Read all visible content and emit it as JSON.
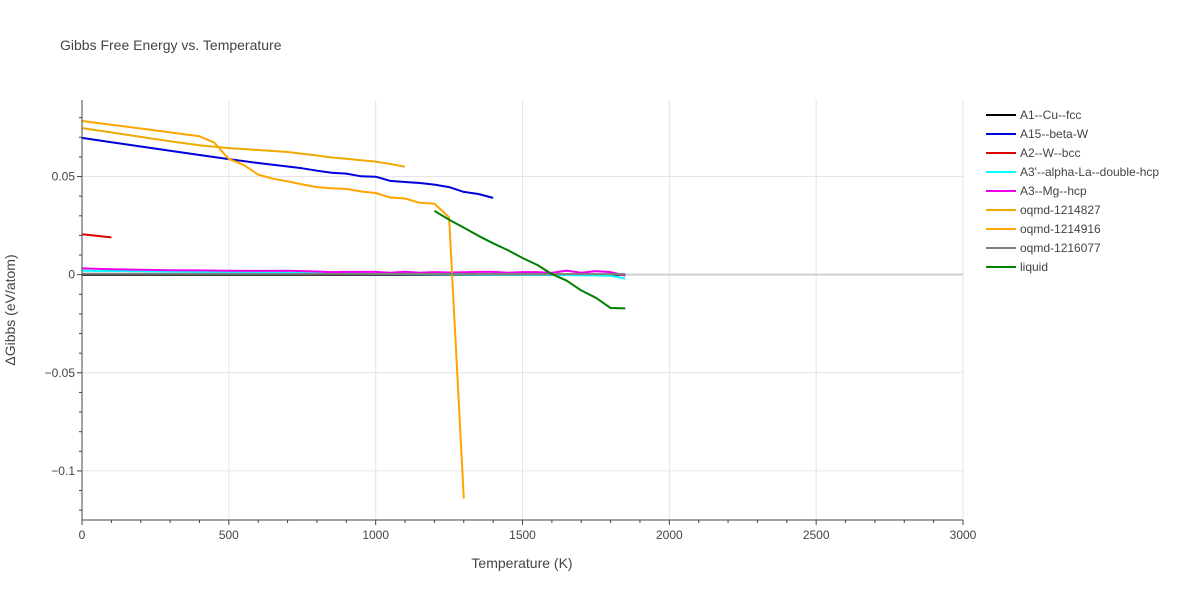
{
  "chart_data": {
    "type": "line",
    "title": "Gibbs Free Energy vs. Temperature",
    "xlabel": "Temperature (K)",
    "ylabel": "ΔGibbs (eV/atom)",
    "xlim": [
      0,
      3000
    ],
    "ylim": [
      -0.125,
      0.089
    ],
    "x_ticks": [
      0,
      500,
      1000,
      1500,
      2000,
      2500,
      3000
    ],
    "x_tick_labels": [
      "0",
      "500",
      "1000",
      "1500",
      "2000",
      "2500",
      "3000"
    ],
    "y_ticks": [
      -0.1,
      -0.05,
      0,
      0.05
    ],
    "y_tick_labels": [
      "−0.1",
      "−0.05",
      "0",
      "0.05"
    ],
    "grid": true,
    "legend_position": "right",
    "series": [
      {
        "name": "A1--Cu--fcc",
        "color": "#000000",
        "x": [
          0,
          1850
        ],
        "y": [
          0,
          0
        ]
      },
      {
        "name": "A15--beta-W",
        "color": "#0000dd",
        "x": [
          0,
          100,
          200,
          300,
          400,
          500,
          600,
          700,
          750,
          800,
          850,
          900,
          950,
          1000,
          1050,
          1100,
          1150,
          1200,
          1250,
          1300,
          1350,
          1400
        ],
        "y": [
          0.0697,
          0.0675,
          0.0653,
          0.0631,
          0.061,
          0.0589,
          0.0569,
          0.0551,
          0.0542,
          0.053,
          0.0519,
          0.0515,
          0.0501,
          0.0499,
          0.0478,
          0.0472,
          0.0467,
          0.0459,
          0.0446,
          0.0422,
          0.0411,
          0.0391
        ]
      },
      {
        "name": "A2--W--bcc",
        "color": "#dd0000",
        "x": [
          0,
          100
        ],
        "y": [
          0.0206,
          0.019
        ]
      },
      {
        "name": "A3'--alpha-La--double-hcp",
        "color": "#00ffff",
        "x": [
          0,
          200,
          400,
          600,
          800,
          1000,
          1200,
          1400,
          1600,
          1800,
          1850
        ],
        "y": [
          0.002,
          0.0017,
          0.0014,
          0.0012,
          0.0008,
          0.0004,
          0.0002,
          0.0001,
          0.0,
          -0.0005,
          -0.002
        ]
      },
      {
        "name": "A3--Mg--hcp",
        "color": "#ee00ee",
        "x": [
          0,
          100,
          200,
          300,
          400,
          500,
          600,
          700,
          800,
          850,
          900,
          1000,
          1050,
          1100,
          1150,
          1200,
          1250,
          1300,
          1350,
          1400,
          1450,
          1500,
          1550,
          1600,
          1650,
          1700,
          1750,
          1800,
          1850
        ],
        "y": [
          0.0032,
          0.0028,
          0.0025,
          0.0023,
          0.0022,
          0.002,
          0.0019,
          0.002,
          0.0016,
          0.0013,
          0.0014,
          0.0014,
          0.001,
          0.0015,
          0.001,
          0.0013,
          0.0011,
          0.0012,
          0.0014,
          0.0014,
          0.001,
          0.0013,
          0.0013,
          0.0009,
          0.0021,
          0.001,
          0.0018,
          0.0013,
          -0.0005
        ]
      },
      {
        "name": "oqmd-1214827",
        "color": "#eeaa00",
        "x": [
          0,
          100,
          200,
          300,
          400,
          500,
          600,
          700,
          800,
          850,
          900,
          950,
          1000,
          1050,
          1100
        ],
        "y": [
          0.0747,
          0.0725,
          0.0702,
          0.068,
          0.0659,
          0.0645,
          0.0635,
          0.0625,
          0.0607,
          0.0597,
          0.0591,
          0.0583,
          0.0576,
          0.0564,
          0.055
        ]
      },
      {
        "name": "oqmd-1214916",
        "color": "#ffa500",
        "x": [
          0,
          100,
          200,
          300,
          400,
          450,
          500,
          550,
          600,
          650,
          700,
          750,
          800,
          850,
          900,
          950,
          1000,
          1050,
          1100,
          1150,
          1200,
          1250,
          1300
        ],
        "y": [
          0.0783,
          0.0764,
          0.0745,
          0.0725,
          0.0705,
          0.0673,
          0.059,
          0.056,
          0.051,
          0.0489,
          0.0475,
          0.046,
          0.0446,
          0.044,
          0.0437,
          0.0424,
          0.0416,
          0.0393,
          0.0388,
          0.0366,
          0.0362,
          0.0292,
          -0.114
        ]
      },
      {
        "name": "oqmd-1216077",
        "color": "#808080",
        "x": [
          0,
          1850
        ],
        "y": [
          0.0005,
          0.0003
        ]
      },
      {
        "name": "liquid",
        "color": "#008000",
        "x": [
          1200,
          1250,
          1300,
          1350,
          1400,
          1450,
          1500,
          1550,
          1600,
          1650,
          1700,
          1750,
          1800,
          1850
        ],
        "y": [
          0.0325,
          0.028,
          0.024,
          0.0198,
          0.016,
          0.0125,
          0.0085,
          0.005,
          0.0003,
          -0.003,
          -0.008,
          -0.0118,
          -0.017,
          -0.0172
        ]
      }
    ]
  }
}
